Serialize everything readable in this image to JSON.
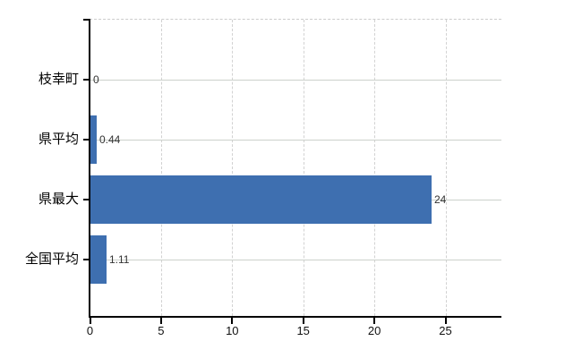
{
  "chart_data": {
    "type": "bar",
    "orientation": "horizontal",
    "title": "",
    "xlabel": "",
    "ylabel": "",
    "categories": [
      "枝幸町",
      "県平均",
      "県最大",
      "全国平均"
    ],
    "values": [
      0,
      0.44,
      24,
      1.11
    ],
    "value_labels": [
      "0",
      "0.44",
      "24",
      "1.11"
    ],
    "xticks": [
      0,
      5,
      10,
      15,
      20,
      25
    ],
    "xtick_labels": [
      "0",
      "5",
      "10",
      "15",
      "20",
      "25"
    ],
    "xlim": [
      0,
      29
    ],
    "grid": true,
    "legend": false,
    "colors": {
      "bar": "#3e6fb0",
      "axis": "#000000",
      "gridline": "#ccd1cb",
      "category_label": "#000000",
      "value_label": "#333333",
      "tick_label": "#111111",
      "background": "#ffffff"
    }
  }
}
